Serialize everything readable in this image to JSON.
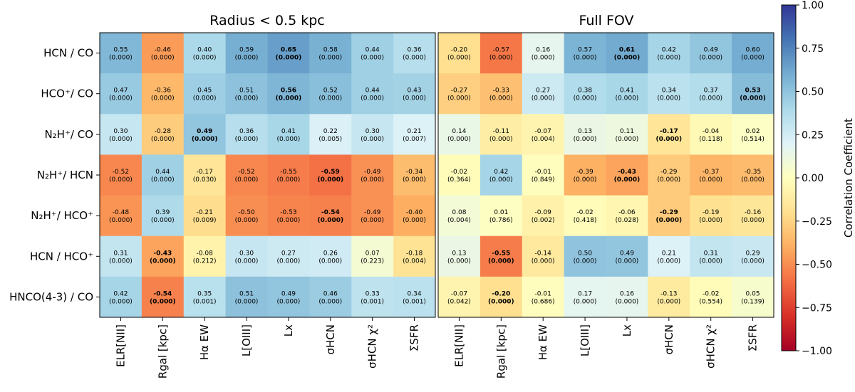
{
  "chart_data": [
    {
      "type": "heatmap",
      "title": "Radius < 0.5 kpc",
      "rows": [
        "HCN / CO",
        "HCO⁺/ CO",
        "N₂H⁺/ CO",
        "N₂H⁺/ HCN",
        "N₂H⁺/ HCO⁺",
        "HCN / HCO⁺",
        "HNCO(4-3) / CO"
      ],
      "columns": [
        "ELR[NII]",
        "Rgal [kpc]",
        "Hα EW",
        "L[OIII]",
        "Lx",
        "σHCN",
        "σHCN χ²",
        "ΣSFR"
      ],
      "values": [
        [
          0.55,
          -0.46,
          0.4,
          0.59,
          0.65,
          0.58,
          0.44,
          0.36
        ],
        [
          0.47,
          -0.36,
          0.45,
          0.51,
          0.56,
          0.52,
          0.44,
          0.43
        ],
        [
          0.3,
          -0.28,
          0.49,
          0.36,
          0.41,
          0.22,
          0.3,
          0.21
        ],
        [
          -0.52,
          0.44,
          -0.17,
          -0.52,
          -0.55,
          -0.59,
          -0.49,
          -0.34
        ],
        [
          -0.48,
          0.39,
          -0.21,
          -0.5,
          -0.53,
          -0.54,
          -0.49,
          -0.4
        ],
        [
          0.31,
          -0.43,
          -0.08,
          0.3,
          0.27,
          0.26,
          0.07,
          -0.18
        ],
        [
          0.42,
          -0.54,
          0.35,
          0.51,
          0.49,
          0.46,
          0.33,
          0.34
        ]
      ],
      "pvalues": [
        [
          "(0.000)",
          "(0.000)",
          "(0.000)",
          "(0.000)",
          "(0.000)",
          "(0.000)",
          "(0.000)",
          "(0.000)"
        ],
        [
          "(0.000)",
          "(0.000)",
          "(0.000)",
          "(0.000)",
          "(0.000)",
          "(0.000)",
          "(0.000)",
          "(0.000)"
        ],
        [
          "(0.000)",
          "(0.000)",
          "(0.000)",
          "(0.000)",
          "(0.000)",
          "(0.005)",
          "(0.000)",
          "(0.007)"
        ],
        [
          "(0.000)",
          "(0.000)",
          "(0.030)",
          "(0.000)",
          "(0.000)",
          "(0.000)",
          "(0.000)",
          "(0.000)"
        ],
        [
          "(0.000)",
          "(0.000)",
          "(0.009)",
          "(0.000)",
          "(0.000)",
          "(0.000)",
          "(0.000)",
          "(0.000)"
        ],
        [
          "(0.000)",
          "(0.000)",
          "(0.212)",
          "(0.000)",
          "(0.000)",
          "(0.000)",
          "(0.223)",
          "(0.004)"
        ],
        [
          "(0.000)",
          "(0.000)",
          "(0.001)",
          "(0.000)",
          "(0.000)",
          "(0.000)",
          "(0.001)",
          "(0.001)"
        ]
      ],
      "bold_column_per_row": [
        4,
        4,
        2,
        5,
        5,
        1,
        1
      ]
    },
    {
      "type": "heatmap",
      "title": "Full FOV",
      "rows": [
        "HCN / CO",
        "HCO⁺/ CO",
        "N₂H⁺/ CO",
        "N₂H⁺/ HCN",
        "N₂H⁺/ HCO⁺",
        "HCN / HCO⁺",
        "HNCO(4-3) / CO"
      ],
      "columns": [
        "ELR[NII]",
        "Rgal [kpc]",
        "Hα EW",
        "L[OIII]",
        "Lx",
        "σHCN",
        "σHCN χ²",
        "ΣSFR"
      ],
      "values": [
        [
          -0.2,
          -0.57,
          0.16,
          0.57,
          0.61,
          0.42,
          0.49,
          0.6
        ],
        [
          -0.27,
          -0.33,
          0.27,
          0.38,
          0.41,
          0.34,
          0.37,
          0.53
        ],
        [
          0.14,
          -0.11,
          -0.07,
          0.13,
          0.11,
          -0.17,
          -0.04,
          0.02
        ],
        [
          -0.02,
          0.42,
          -0.01,
          -0.39,
          -0.43,
          -0.29,
          -0.37,
          -0.35
        ],
        [
          0.08,
          0.01,
          -0.09,
          -0.02,
          -0.06,
          -0.29,
          -0.19,
          -0.16
        ],
        [
          0.13,
          -0.55,
          -0.14,
          0.5,
          0.49,
          0.21,
          0.31,
          0.29
        ],
        [
          -0.07,
          -0.2,
          -0.01,
          0.17,
          0.16,
          -0.13,
          -0.02,
          0.05
        ]
      ],
      "pvalues": [
        [
          "(0.000)",
          "(0.000)",
          "(0.000)",
          "(0.000)",
          "(0.000)",
          "(0.000)",
          "(0.000)",
          "(0.000)"
        ],
        [
          "(0.000)",
          "(0.000)",
          "(0.000)",
          "(0.000)",
          "(0.000)",
          "(0.000)",
          "(0.000)",
          "(0.000)"
        ],
        [
          "(0.000)",
          "(0.000)",
          "(0.004)",
          "(0.000)",
          "(0.000)",
          "(0.000)",
          "(0.118)",
          "(0.514)"
        ],
        [
          "(0.364)",
          "(0.000)",
          "(0.849)",
          "(0.000)",
          "(0.000)",
          "(0.000)",
          "(0.000)",
          "(0.000)"
        ],
        [
          "(0.004)",
          "(0.786)",
          "(0.002)",
          "(0.418)",
          "(0.028)",
          "(0.000)",
          "(0.000)",
          "(0.000)"
        ],
        [
          "(0.000)",
          "(0.000)",
          "(0.000)",
          "(0.000)",
          "(0.000)",
          "(0.000)",
          "(0.000)",
          "(0.000)"
        ],
        [
          "(0.042)",
          "(0.000)",
          "(0.686)",
          "(0.000)",
          "(0.000)",
          "(0.000)",
          "(0.554)",
          "(0.139)"
        ]
      ],
      "bold_column_per_row": [
        4,
        7,
        5,
        4,
        5,
        1,
        1
      ]
    }
  ],
  "colorbar": {
    "label": "Correlation Coefficient",
    "range": [
      -1.0,
      1.0
    ],
    "colormap": "RdYlBu",
    "ticks": [
      "1.00",
      "0.75",
      "0.50",
      "0.25",
      "0.00",
      "−0.25",
      "−0.50",
      "−0.75",
      "−1.00"
    ],
    "tick_values": [
      1.0,
      0.75,
      0.5,
      0.25,
      0.0,
      -0.25,
      -0.5,
      -0.75,
      -1.0
    ]
  },
  "colors": {
    "text": "#000000",
    "frame": "#000000",
    "background": "#ffffff"
  }
}
